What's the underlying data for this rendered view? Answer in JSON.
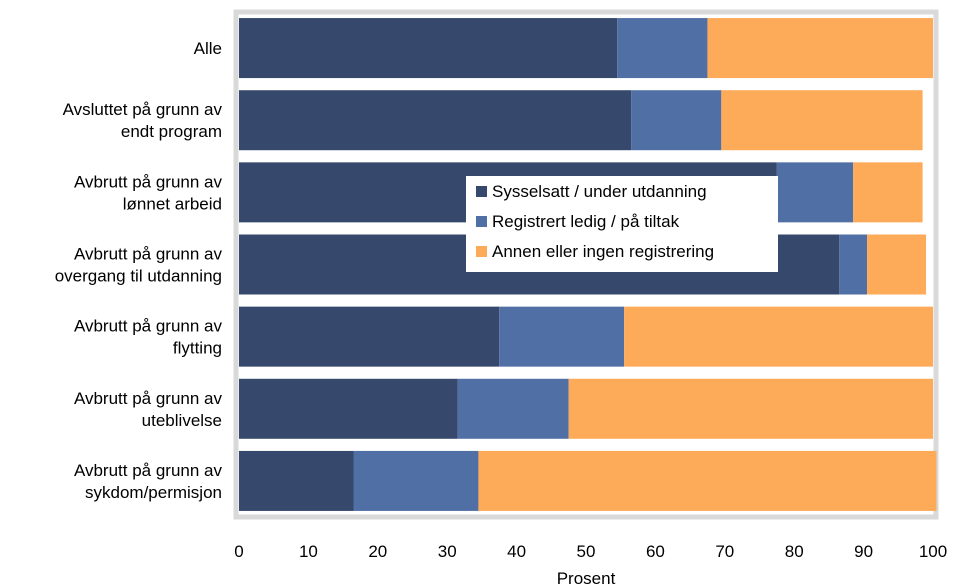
{
  "chart_data": {
    "type": "bar",
    "orientation": "horizontal",
    "stacked": true,
    "categories": [
      [
        "Alle"
      ],
      [
        "Avsluttet på grunn av",
        "endt program"
      ],
      [
        "Avbrutt på grunn av",
        "lønnet arbeid"
      ],
      [
        "Avbrutt på grunn av",
        "overgang til utdanning"
      ],
      [
        "Avbrutt på grunn av",
        "flytting"
      ],
      [
        "Avbrutt på grunn av",
        "uteblivelse"
      ],
      [
        "Avbrutt på grunn av",
        "sykdom/permisjon"
      ]
    ],
    "series": [
      {
        "name": "Sysselsatt / under utdanning",
        "color": "#36486b",
        "values": [
          54.5,
          56.5,
          77.5,
          86.5,
          37.5,
          31.5,
          16.5
        ]
      },
      {
        "name": "Registrert ledig / på tiltak",
        "color": "#4f6fa5",
        "values": [
          13,
          13,
          11,
          4,
          18,
          16,
          18
        ]
      },
      {
        "name": "Annen eller ingen registrering",
        "color": "#fdaa59",
        "values": [
          32.5,
          29,
          10,
          8.5,
          44.5,
          52.5,
          66
        ]
      }
    ],
    "xlabel": "Prosent",
    "xlim": [
      0,
      100
    ],
    "xticks": [
      "0",
      "10",
      "20",
      "30",
      "40",
      "50",
      "60",
      "70",
      "80",
      "90",
      "100"
    ],
    "legend_position": "inside-center-right",
    "grid": false
  }
}
